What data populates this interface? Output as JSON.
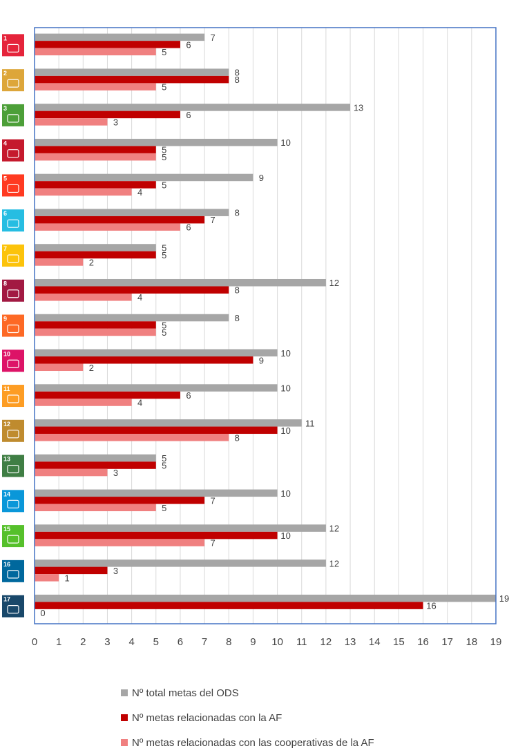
{
  "chart_data": {
    "type": "bar",
    "orientation": "horizontal",
    "categories": [
      "1",
      "2",
      "3",
      "4",
      "5",
      "6",
      "7",
      "8",
      "9",
      "10",
      "11",
      "12",
      "13",
      "14",
      "15",
      "16",
      "17"
    ],
    "series": [
      {
        "name": "Nº total metas del ODS",
        "color": "#a6a6a6",
        "values": [
          7,
          8,
          13,
          10,
          9,
          8,
          5,
          12,
          8,
          10,
          10,
          11,
          5,
          10,
          12,
          12,
          19
        ]
      },
      {
        "name": "Nº metas relacionadas con la AF",
        "color": "#c00000",
        "values": [
          6,
          8,
          6,
          5,
          5,
          7,
          5,
          8,
          5,
          9,
          6,
          10,
          5,
          7,
          10,
          3,
          16
        ]
      },
      {
        "name": "Nº metas relacionadas con las cooperativas de la AF",
        "color": "#f08080",
        "values": [
          5,
          5,
          3,
          5,
          4,
          6,
          2,
          4,
          5,
          2,
          4,
          8,
          3,
          5,
          7,
          1,
          0
        ]
      }
    ],
    "xlim": [
      0,
      19
    ],
    "x_ticks": [
      "0",
      "1",
      "2",
      "3",
      "4",
      "5",
      "6",
      "7",
      "8",
      "9",
      "10",
      "11",
      "12",
      "13",
      "14",
      "15",
      "16",
      "17",
      "18",
      "19"
    ],
    "grid": true,
    "legend_position": "bottom",
    "icon_colors": [
      "#e5243b",
      "#dda63a",
      "#4c9f38",
      "#c5192d",
      "#ff3a21",
      "#26bde2",
      "#fcc30b",
      "#a21942",
      "#fd6925",
      "#dd1367",
      "#fd9d24",
      "#bf8b2e",
      "#3f7e44",
      "#0a97d9",
      "#56c02b",
      "#00689d",
      "#19486a"
    ],
    "icons": [
      "no-poverty-icon",
      "zero-hunger-icon",
      "good-health-icon",
      "quality-education-icon",
      "gender-equality-icon",
      "clean-water-icon",
      "affordable-energy-icon",
      "decent-work-icon",
      "industry-innovation-icon",
      "reduced-inequalities-icon",
      "sustainable-cities-icon",
      "responsible-consumption-icon",
      "climate-action-icon",
      "life-below-water-icon",
      "life-on-land-icon",
      "peace-justice-icon",
      "partnerships-icon"
    ]
  }
}
